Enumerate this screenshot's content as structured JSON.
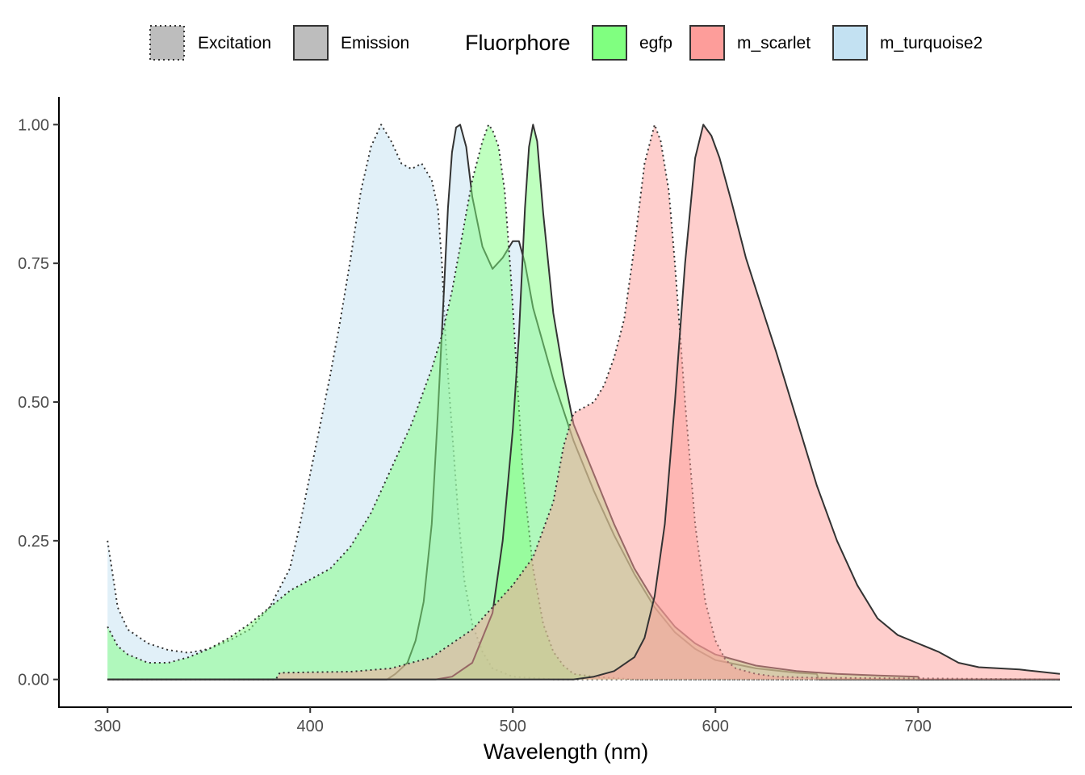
{
  "chart_data": {
    "type": "area",
    "title": "",
    "xlabel": "Wavelength (nm)",
    "ylabel": "",
    "xlim": [
      276,
      776
    ],
    "ylim": [
      -0.05,
      1.05
    ],
    "x_ticks": [
      "300",
      "400",
      "500",
      "600",
      "700"
    ],
    "x_tick_values": [
      300,
      400,
      500,
      600,
      700
    ],
    "y_ticks": [
      "0.00",
      "0.25",
      "0.50",
      "0.75",
      "1.00"
    ],
    "y_tick_values": [
      0,
      0.25,
      0.5,
      0.75,
      1.0
    ],
    "grid": false,
    "legend_position": "top",
    "legend": {
      "linetype_entries": [
        {
          "label": "Excitation",
          "style": "dotted"
        },
        {
          "label": "Emission",
          "style": "solid"
        }
      ],
      "fill_title": "Fluorphore",
      "fill_entries": [
        {
          "label": "egfp",
          "color": "#80ff80"
        },
        {
          "label": "m_scarlet",
          "color": "#fd9d9a"
        },
        {
          "label": "m_turquoise2",
          "color": "#c3e1f2"
        }
      ]
    },
    "series": [
      {
        "fluorophore": "m_turquoise2",
        "kind": "Excitation",
        "points": [
          [
            300,
            0.25
          ],
          [
            305,
            0.13
          ],
          [
            310,
            0.09
          ],
          [
            320,
            0.065
          ],
          [
            330,
            0.053
          ],
          [
            340,
            0.048
          ],
          [
            350,
            0.055
          ],
          [
            360,
            0.07
          ],
          [
            370,
            0.09
          ],
          [
            380,
            0.13
          ],
          [
            390,
            0.2
          ],
          [
            395,
            0.28
          ],
          [
            400,
            0.37
          ],
          [
            405,
            0.46
          ],
          [
            410,
            0.55
          ],
          [
            415,
            0.65
          ],
          [
            420,
            0.76
          ],
          [
            425,
            0.88
          ],
          [
            430,
            0.96
          ],
          [
            435,
            1.0
          ],
          [
            440,
            0.97
          ],
          [
            445,
            0.93
          ],
          [
            450,
            0.92
          ],
          [
            455,
            0.93
          ],
          [
            460,
            0.9
          ],
          [
            463,
            0.85
          ],
          [
            465,
            0.75
          ],
          [
            467,
            0.6
          ],
          [
            470,
            0.45
          ],
          [
            473,
            0.3
          ],
          [
            476,
            0.18
          ],
          [
            480,
            0.1
          ],
          [
            485,
            0.05
          ],
          [
            490,
            0.02
          ],
          [
            500,
            0.005
          ],
          [
            520,
            0
          ],
          [
            770,
            0
          ]
        ]
      },
      {
        "fluorophore": "m_turquoise2",
        "kind": "Emission",
        "points": [
          [
            300,
            0
          ],
          [
            438,
            0
          ],
          [
            442,
            0.01
          ],
          [
            448,
            0.03
          ],
          [
            452,
            0.07
          ],
          [
            456,
            0.14
          ],
          [
            460,
            0.28
          ],
          [
            463,
            0.48
          ],
          [
            466,
            0.7
          ],
          [
            468,
            0.85
          ],
          [
            470,
            0.95
          ],
          [
            472,
            0.995
          ],
          [
            474,
            1.0
          ],
          [
            477,
            0.96
          ],
          [
            480,
            0.87
          ],
          [
            485,
            0.78
          ],
          [
            490,
            0.74
          ],
          [
            495,
            0.76
          ],
          [
            500,
            0.79
          ],
          [
            503,
            0.79
          ],
          [
            506,
            0.75
          ],
          [
            510,
            0.67
          ],
          [
            520,
            0.54
          ],
          [
            530,
            0.43
          ],
          [
            540,
            0.34
          ],
          [
            550,
            0.26
          ],
          [
            560,
            0.19
          ],
          [
            570,
            0.13
          ],
          [
            580,
            0.085
          ],
          [
            590,
            0.055
          ],
          [
            600,
            0.035
          ],
          [
            620,
            0.02
          ],
          [
            640,
            0.012
          ],
          [
            650,
            0.01
          ],
          [
            651,
            0
          ],
          [
            770,
            0
          ]
        ]
      },
      {
        "fluorophore": "egfp",
        "kind": "Excitation",
        "points": [
          [
            300,
            0.095
          ],
          [
            305,
            0.06
          ],
          [
            310,
            0.045
          ],
          [
            320,
            0.03
          ],
          [
            330,
            0.03
          ],
          [
            340,
            0.04
          ],
          [
            350,
            0.055
          ],
          [
            360,
            0.075
          ],
          [
            370,
            0.1
          ],
          [
            380,
            0.13
          ],
          [
            390,
            0.16
          ],
          [
            400,
            0.18
          ],
          [
            410,
            0.2
          ],
          [
            420,
            0.24
          ],
          [
            430,
            0.3
          ],
          [
            440,
            0.38
          ],
          [
            450,
            0.46
          ],
          [
            460,
            0.56
          ],
          [
            465,
            0.62
          ],
          [
            470,
            0.7
          ],
          [
            475,
            0.8
          ],
          [
            480,
            0.9
          ],
          [
            485,
            0.97
          ],
          [
            488,
            1.0
          ],
          [
            490,
            0.99
          ],
          [
            493,
            0.96
          ],
          [
            496,
            0.88
          ],
          [
            499,
            0.73
          ],
          [
            502,
            0.55
          ],
          [
            505,
            0.37
          ],
          [
            510,
            0.2
          ],
          [
            515,
            0.1
          ],
          [
            520,
            0.05
          ],
          [
            525,
            0.025
          ],
          [
            530,
            0.01
          ],
          [
            540,
            0.005
          ],
          [
            560,
            0
          ],
          [
            770,
            0
          ]
        ]
      },
      {
        "fluorophore": "egfp",
        "kind": "Emission",
        "points": [
          [
            300,
            0
          ],
          [
            462,
            0
          ],
          [
            470,
            0.005
          ],
          [
            480,
            0.03
          ],
          [
            490,
            0.12
          ],
          [
            495,
            0.25
          ],
          [
            500,
            0.45
          ],
          [
            503,
            0.62
          ],
          [
            506,
            0.85
          ],
          [
            508,
            0.96
          ],
          [
            510,
            1.0
          ],
          [
            512,
            0.97
          ],
          [
            515,
            0.84
          ],
          [
            520,
            0.66
          ],
          [
            525,
            0.55
          ],
          [
            530,
            0.46
          ],
          [
            540,
            0.37
          ],
          [
            550,
            0.28
          ],
          [
            560,
            0.2
          ],
          [
            570,
            0.14
          ],
          [
            580,
            0.095
          ],
          [
            590,
            0.065
          ],
          [
            600,
            0.045
          ],
          [
            620,
            0.025
          ],
          [
            640,
            0.015
          ],
          [
            660,
            0.01
          ],
          [
            680,
            0.007
          ],
          [
            700,
            0.005
          ],
          [
            701,
            0
          ],
          [
            770,
            0
          ]
        ]
      },
      {
        "fluorophore": "m_scarlet",
        "kind": "Excitation",
        "points": [
          [
            300,
            0
          ],
          [
            383,
            0
          ],
          [
            385,
            0.012
          ],
          [
            400,
            0.013
          ],
          [
            420,
            0.014
          ],
          [
            440,
            0.02
          ],
          [
            460,
            0.04
          ],
          [
            480,
            0.09
          ],
          [
            490,
            0.13
          ],
          [
            500,
            0.17
          ],
          [
            510,
            0.22
          ],
          [
            520,
            0.32
          ],
          [
            525,
            0.42
          ],
          [
            530,
            0.48
          ],
          [
            535,
            0.49
          ],
          [
            540,
            0.5
          ],
          [
            545,
            0.53
          ],
          [
            550,
            0.58
          ],
          [
            555,
            0.65
          ],
          [
            560,
            0.78
          ],
          [
            565,
            0.93
          ],
          [
            570,
            1.0
          ],
          [
            573,
            0.97
          ],
          [
            577,
            0.88
          ],
          [
            580,
            0.75
          ],
          [
            585,
            0.5
          ],
          [
            590,
            0.28
          ],
          [
            595,
            0.14
          ],
          [
            600,
            0.07
          ],
          [
            605,
            0.035
          ],
          [
            610,
            0.02
          ],
          [
            620,
            0.01
          ],
          [
            630,
            0.005
          ],
          [
            650,
            0.003
          ],
          [
            700,
            0.002
          ],
          [
            770,
            0
          ]
        ]
      },
      {
        "fluorophore": "m_scarlet",
        "kind": "Emission",
        "points": [
          [
            300,
            0
          ],
          [
            530,
            0
          ],
          [
            540,
            0.005
          ],
          [
            550,
            0.015
          ],
          [
            560,
            0.04
          ],
          [
            565,
            0.075
          ],
          [
            570,
            0.15
          ],
          [
            575,
            0.28
          ],
          [
            580,
            0.5
          ],
          [
            585,
            0.75
          ],
          [
            590,
            0.94
          ],
          [
            594,
            1.0
          ],
          [
            598,
            0.98
          ],
          [
            602,
            0.94
          ],
          [
            608,
            0.86
          ],
          [
            615,
            0.76
          ],
          [
            622,
            0.68
          ],
          [
            630,
            0.59
          ],
          [
            640,
            0.47
          ],
          [
            650,
            0.35
          ],
          [
            660,
            0.25
          ],
          [
            670,
            0.17
          ],
          [
            680,
            0.11
          ],
          [
            690,
            0.08
          ],
          [
            700,
            0.065
          ],
          [
            710,
            0.05
          ],
          [
            720,
            0.03
          ],
          [
            730,
            0.022
          ],
          [
            740,
            0.02
          ],
          [
            750,
            0.018
          ],
          [
            760,
            0.014
          ],
          [
            770,
            0.01
          ]
        ]
      }
    ]
  }
}
